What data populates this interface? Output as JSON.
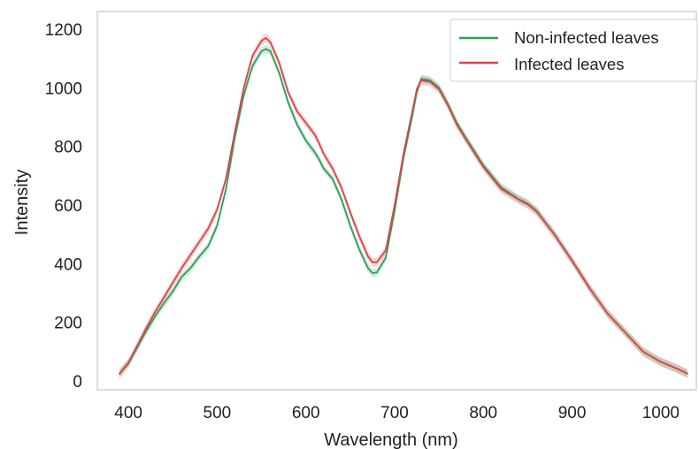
{
  "chart_data": {
    "type": "line",
    "title": "",
    "xlabel": "Wavelength (nm)",
    "ylabel": "Intensity",
    "xlim": [
      365,
      1040
    ],
    "ylim": [
      -30,
      1260
    ],
    "xticks": [
      400,
      500,
      600,
      700,
      800,
      900,
      1000
    ],
    "yticks": [
      0,
      200,
      400,
      600,
      800,
      1000,
      1200
    ],
    "grid": false,
    "legend_position": "top-right",
    "series": [
      {
        "name": "Non-infected leaves",
        "color": "#2e9e5b",
        "x": [
          390,
          400,
          410,
          420,
          430,
          440,
          450,
          460,
          470,
          480,
          490,
          500,
          510,
          520,
          530,
          540,
          550,
          555,
          560,
          570,
          580,
          590,
          600,
          610,
          615,
          620,
          630,
          640,
          650,
          660,
          670,
          675,
          680,
          690,
          700,
          710,
          720,
          725,
          730,
          740,
          750,
          760,
          770,
          780,
          800,
          820,
          840,
          850,
          860,
          880,
          900,
          920,
          940,
          960,
          980,
          1000,
          1020,
          1030
        ],
        "y": [
          25,
          60,
          115,
          170,
          220,
          265,
          305,
          355,
          385,
          425,
          460,
          530,
          655,
          830,
          975,
          1075,
          1125,
          1132,
          1125,
          1050,
          950,
          875,
          820,
          780,
          755,
          725,
          690,
          620,
          530,
          450,
          385,
          368,
          370,
          420,
          580,
          760,
          905,
          985,
          1030,
          1025,
          1000,
          945,
          880,
          830,
          735,
          660,
          620,
          605,
          580,
          500,
          410,
          315,
          230,
          165,
          100,
          65,
          40,
          25
        ],
        "band": 14
      },
      {
        "name": "Infected leaves",
        "color": "#d44848",
        "x": [
          390,
          400,
          410,
          420,
          430,
          440,
          450,
          460,
          470,
          480,
          490,
          500,
          510,
          520,
          530,
          540,
          550,
          555,
          560,
          570,
          580,
          590,
          600,
          610,
          615,
          620,
          630,
          640,
          650,
          660,
          670,
          675,
          680,
          690,
          700,
          710,
          720,
          725,
          730,
          740,
          750,
          760,
          770,
          780,
          800,
          820,
          840,
          850,
          860,
          880,
          900,
          920,
          940,
          960,
          980,
          1000,
          1020,
          1030
        ],
        "y": [
          25,
          62,
          120,
          180,
          235,
          285,
          335,
          385,
          430,
          475,
          520,
          585,
          690,
          850,
          1000,
          1110,
          1160,
          1170,
          1155,
          1085,
          985,
          920,
          880,
          840,
          810,
          775,
          725,
          660,
          575,
          495,
          425,
          405,
          405,
          445,
          600,
          775,
          920,
          995,
          1025,
          1020,
          995,
          940,
          875,
          825,
          730,
          655,
          618,
          602,
          578,
          500,
          410,
          315,
          230,
          165,
          100,
          65,
          40,
          25
        ],
        "band": 15
      }
    ]
  }
}
